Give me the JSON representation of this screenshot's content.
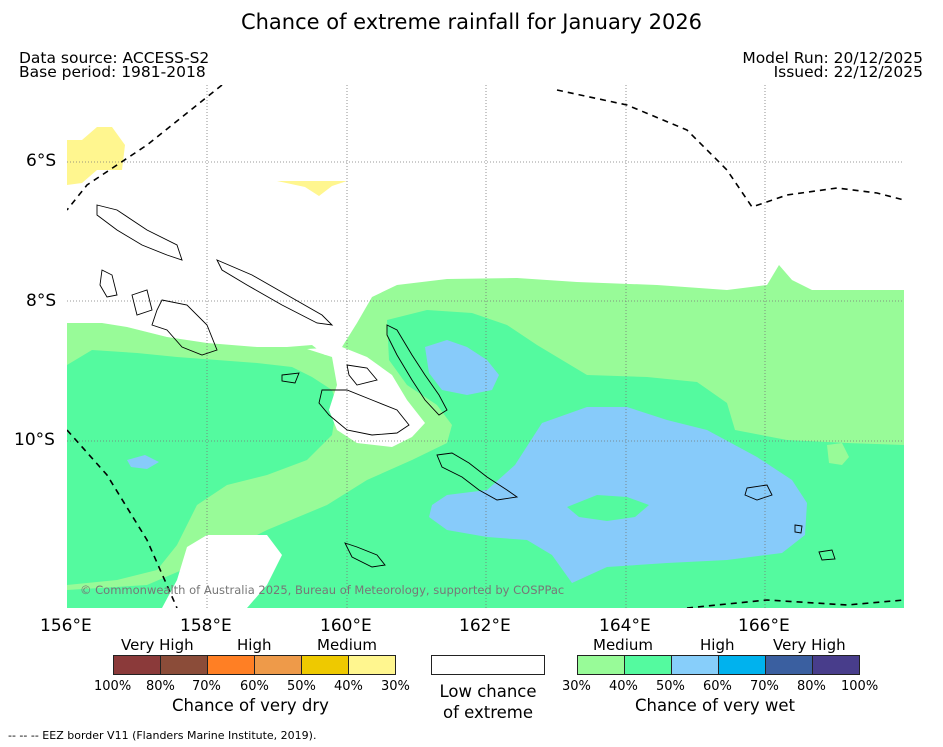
{
  "header": {
    "title": "Chance of extreme rainfall for January 2026",
    "data_source": "Data source: ACCESS-S2",
    "base_period": "Base period: 1981-2018",
    "model_run": "Model Run: 20/12/2025",
    "issued": "Issued: 22/12/2025"
  },
  "map": {
    "lat_labels": [
      "6°S",
      "8°S",
      "10°S"
    ],
    "lon_labels": [
      "156°E",
      "158°E",
      "160°E",
      "162°E",
      "164°E",
      "166°E"
    ],
    "copyright": "© Commonwealth of Australia 2025, Bureau of Meteorology, supported by COSPPac",
    "colors": {
      "medium_wet": "#98fb98",
      "high_wet_40": "#54fa9f",
      "high_wet_50": "#87cbfa",
      "medium_dry_40": "#fff68f",
      "land_outline": "#000000",
      "eez_border": "#000000"
    }
  },
  "legend": {
    "dry": {
      "categories": [
        "Very High",
        "High",
        "Medium"
      ],
      "percents": [
        "100%",
        "80%",
        "70%",
        "60%",
        "50%",
        "40%",
        "30%"
      ],
      "colors": [
        "#8b3a3a",
        "#8b4c39",
        "#ff7f24",
        "#ee9a49",
        "#eec900",
        "#fff68f"
      ],
      "caption": "Chance of very dry"
    },
    "low": {
      "caption_line1": "Low chance",
      "caption_line2": "of extreme",
      "color": "#ffffff"
    },
    "wet": {
      "categories": [
        "Medium",
        "High",
        "Very High"
      ],
      "percents": [
        "30%",
        "40%",
        "50%",
        "60%",
        "70%",
        "80%",
        "100%"
      ],
      "colors": [
        "#98fb98",
        "#54fa9f",
        "#87cefa",
        "#00b2ee",
        "#3a5fa0",
        "#483d8b"
      ],
      "caption": "Chance of very wet"
    }
  },
  "footer": {
    "eez_note": "--  --  -- EEZ border V11 (Flanders Marine Institute, 2019)."
  }
}
